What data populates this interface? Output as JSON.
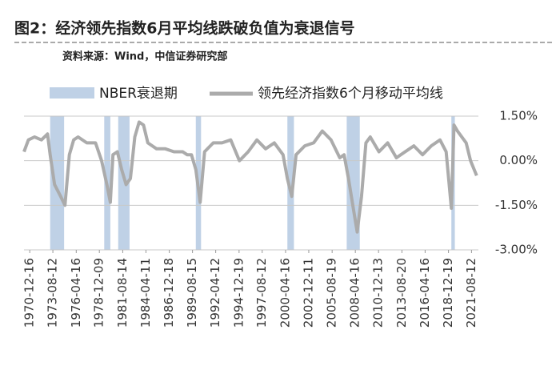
{
  "chart_data": {
    "type": "line",
    "title": "图2：经济领先指数6月平均线跌破负值为衰退信号",
    "subtitle": "资料来源：Wind，中信证券研究部",
    "xlim": [
      1970.3,
      2022.4
    ],
    "xticks": [
      {
        "value": 1970.96,
        "label": "1970-12-16"
      },
      {
        "value": 1973.61,
        "label": "1973-08-12"
      },
      {
        "value": 1976.29,
        "label": "1976-04-16"
      },
      {
        "value": 1978.94,
        "label": "1978-12-09"
      },
      {
        "value": 1981.62,
        "label": "1981-08-14"
      },
      {
        "value": 1984.28,
        "label": "1984-04-11"
      },
      {
        "value": 1986.96,
        "label": "1986-12-18"
      },
      {
        "value": 1989.62,
        "label": "1989-08-15"
      },
      {
        "value": 1992.28,
        "label": "1992-04-12"
      },
      {
        "value": 1994.96,
        "label": "1994-12-19"
      },
      {
        "value": 1997.61,
        "label": "1997-08-12"
      },
      {
        "value": 2000.29,
        "label": "2000-04-16"
      },
      {
        "value": 2002.95,
        "label": "2002-12-11"
      },
      {
        "value": 2005.63,
        "label": "2005-08-19"
      },
      {
        "value": 2008.29,
        "label": "2008-04-16"
      },
      {
        "value": 2010.95,
        "label": "2010-12-13"
      },
      {
        "value": 2013.63,
        "label": "2013-08-20"
      },
      {
        "value": 2016.29,
        "label": "2016-04-16"
      },
      {
        "value": 2018.97,
        "label": "2018-12-19"
      },
      {
        "value": 2021.61,
        "label": "2021-08-12"
      }
    ],
    "ylim": [
      -3,
      1.5
    ],
    "yticks": [
      {
        "value": 1.5,
        "label": "1.50%"
      },
      {
        "value": 0,
        "label": "0.00%"
      },
      {
        "value": -1.5,
        "label": "-1.50%"
      },
      {
        "value": -3,
        "label": "-3.00%"
      }
    ],
    "grid": true,
    "recessions": {
      "name": "NBER衰退期",
      "color": "#bfd1e6",
      "ranges": [
        [
          1973.3,
          1974.9
        ],
        [
          1979.5,
          1980.2
        ],
        [
          1981.1,
          1982.4
        ],
        [
          1990.0,
          1990.6
        ],
        [
          2000.5,
          2001.25
        ],
        [
          2007.3,
          2008.8
        ],
        [
          2019.3,
          2019.7
        ]
      ]
    },
    "series": [
      {
        "name": "领先经济指数6个月移动平均线",
        "color": "#ababab",
        "x": [
          1970.3,
          1970.8,
          1971.5,
          1972.3,
          1973.0,
          1973.3,
          1973.8,
          1974.5,
          1975.0,
          1975.5,
          1976.0,
          1976.5,
          1977.5,
          1978.5,
          1979.2,
          1979.8,
          1980.2,
          1980.5,
          1981.0,
          1981.5,
          1982.0,
          1982.5,
          1983.0,
          1983.5,
          1984.0,
          1984.5,
          1985.5,
          1986.5,
          1987.5,
          1988.5,
          1989.0,
          1989.5,
          1990.0,
          1990.5,
          1991.0,
          1992.0,
          1993.0,
          1994.0,
          1995.0,
          1996.0,
          1997.0,
          1998.0,
          1999.0,
          2000.0,
          2000.5,
          2001.0,
          2001.5,
          2002.5,
          2003.5,
          2004.5,
          2005.5,
          2006.5,
          2007.0,
          2007.5,
          2008.0,
          2008.5,
          2009.0,
          2009.5,
          2010.0,
          2011.0,
          2012.0,
          2013.0,
          2014.0,
          2015.0,
          2016.0,
          2017.0,
          2018.0,
          2018.7,
          2019.3,
          2019.6,
          2020.0,
          2021.0,
          2021.5,
          2022.2
        ],
        "values": [
          0.3,
          0.7,
          0.8,
          0.7,
          0.9,
          0.2,
          -0.8,
          -1.2,
          -1.5,
          0.2,
          0.7,
          0.8,
          0.6,
          0.6,
          0.0,
          -0.8,
          -1.4,
          0.2,
          0.3,
          -0.3,
          -0.8,
          -0.6,
          0.8,
          1.3,
          1.2,
          0.6,
          0.4,
          0.4,
          0.3,
          0.3,
          0.2,
          0.2,
          -0.3,
          -1.4,
          0.3,
          0.6,
          0.6,
          0.7,
          0.0,
          0.3,
          0.7,
          0.4,
          0.6,
          0.2,
          -0.6,
          -1.2,
          0.2,
          0.5,
          0.6,
          1.0,
          0.7,
          0.1,
          0.2,
          -0.6,
          -1.5,
          -2.4,
          -1.2,
          0.6,
          0.8,
          0.3,
          0.6,
          0.1,
          0.3,
          0.5,
          0.2,
          0.5,
          0.7,
          0.3,
          -1.6,
          1.2,
          1.0,
          0.6,
          0.0,
          -0.5
        ]
      }
    ]
  }
}
